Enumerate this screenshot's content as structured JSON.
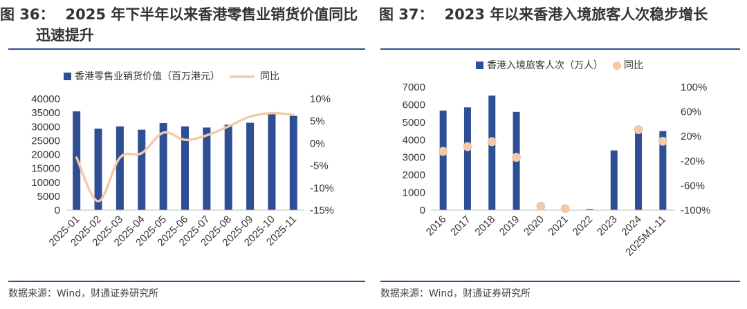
{
  "colors": {
    "bar": "#2e4f94",
    "line": "#f3c9a8",
    "dot": "#f3c9a8",
    "rule": "#2a4f8f"
  },
  "left": {
    "number": "图 36：",
    "title_line1": "2025 年下半年以来香港零售业销货价值同比",
    "title_line2": "迅速提升",
    "source": "数据来源：Wind，财通证券研究所"
  },
  "right": {
    "number": "图 37：",
    "title_line1": "2023 年以来香港入境旅客人次稳步增长",
    "source": "数据来源：Wind，财通证券研究所"
  },
  "chart_data": [
    {
      "type": "bar",
      "title": "",
      "categories": [
        "2025-01",
        "2025-02",
        "2025-03",
        "2025-04",
        "2025-05",
        "2025-06",
        "2025-07",
        "2025-08",
        "2025-09",
        "2025-10",
        "2025-11"
      ],
      "series": [
        {
          "name": "香港零售业销货价值（百万港元）",
          "kind": "bar",
          "axis": "left",
          "values": [
            35500,
            29300,
            30100,
            28900,
            31300,
            30100,
            29700,
            30700,
            31400,
            35100,
            33900
          ]
        },
        {
          "name": "同比",
          "kind": "line",
          "axis": "right",
          "values": [
            -3.2,
            -13.0,
            -3.2,
            -2.2,
            2.4,
            0.8,
            1.8,
            3.8,
            6.0,
            6.8,
            6.4
          ]
        }
      ],
      "y_left": {
        "min": 0,
        "max": 40000,
        "ticks": [
          "0",
          "5000",
          "10000",
          "15000",
          "20000",
          "25000",
          "30000",
          "35000",
          "40000"
        ]
      },
      "y_right": {
        "min": -15,
        "max": 10,
        "ticks": [
          "-15%",
          "-10%",
          "-5%",
          "0%",
          "5%",
          "10%"
        ]
      },
      "legend_position": "top"
    },
    {
      "type": "bar",
      "title": "",
      "categories": [
        "2016",
        "2017",
        "2018",
        "2019",
        "2020",
        "2021",
        "2022",
        "2023",
        "2024",
        "2025M1-11"
      ],
      "series": [
        {
          "name": "香港入境旅客人次（万人）",
          "kind": "bar",
          "axis": "left",
          "values": [
            5665,
            5847,
            6515,
            5591,
            357,
            9,
            60,
            3400,
            4450,
            4500
          ]
        },
        {
          "name": "同比",
          "kind": "scatter",
          "axis": "right",
          "values": [
            -4.5,
            3.2,
            11.4,
            -14.2,
            -93.6,
            -97.4,
            null,
            null,
            30.9,
            12.0
          ]
        }
      ],
      "y_left": {
        "min": 0,
        "max": 7000,
        "ticks": [
          "0",
          "1000",
          "2000",
          "3000",
          "4000",
          "5000",
          "6000",
          "7000"
        ]
      },
      "y_right": {
        "min": -100,
        "max": 100,
        "ticks": [
          "-100%",
          "-60%",
          "-20%",
          "20%",
          "60%",
          "100%"
        ]
      },
      "legend_position": "top"
    }
  ]
}
